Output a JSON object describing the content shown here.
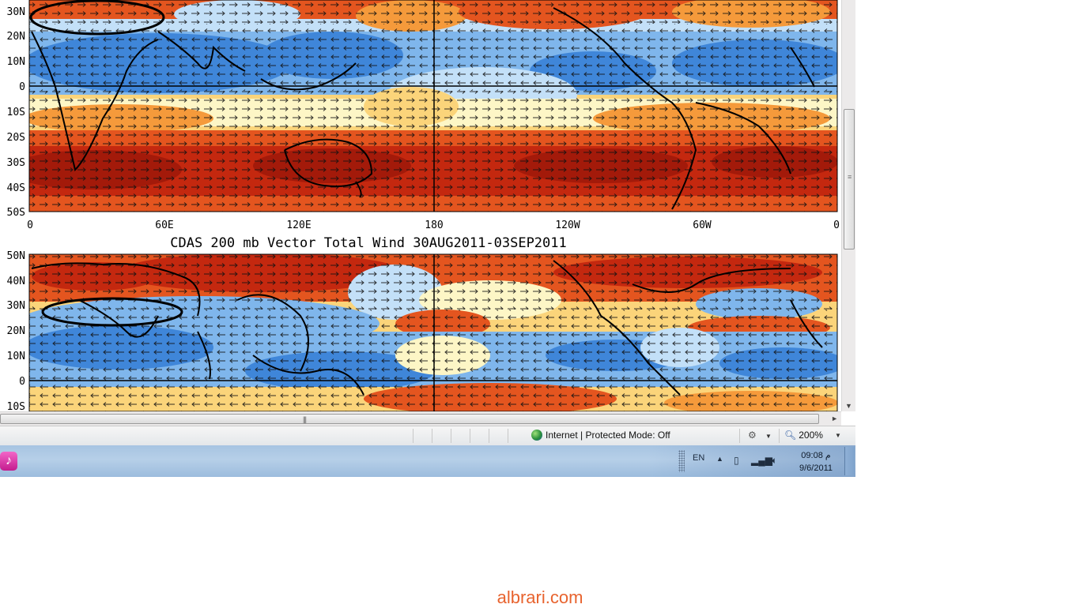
{
  "map": {
    "top_panel": {
      "lat_labels": [
        "30N",
        "20N",
        "10N",
        "0",
        "10S",
        "20S",
        "30S",
        "40S",
        "50S"
      ],
      "lon_labels": [
        "0",
        "60E",
        "120E",
        "180",
        "120W",
        "60W",
        "0"
      ]
    },
    "bottom_panel": {
      "title": "CDAS 200 mb Vector Total Wind 30AUG2011-03SEP2011",
      "lat_labels": [
        "50N",
        "40N",
        "30N",
        "20N",
        "10N",
        "0",
        "10S"
      ]
    },
    "colors": {
      "strong_blue": "#3f86d9",
      "blue": "#7fb6ec",
      "light_blue": "#c3e0f8",
      "cream": "#fdf6c6",
      "yellow": "#fbd47a",
      "orange": "#f59a3b",
      "red_orange": "#e4551f",
      "red": "#c4280f",
      "dark_red": "#a31a0a"
    }
  },
  "statusbar": {
    "zone_text": "Internet | Protected Mode: Off",
    "zoom": "200%"
  },
  "taskbar": {
    "language": "EN",
    "time": "09:08 م",
    "date": "9/6/2011"
  },
  "watermark": "albrari.com"
}
